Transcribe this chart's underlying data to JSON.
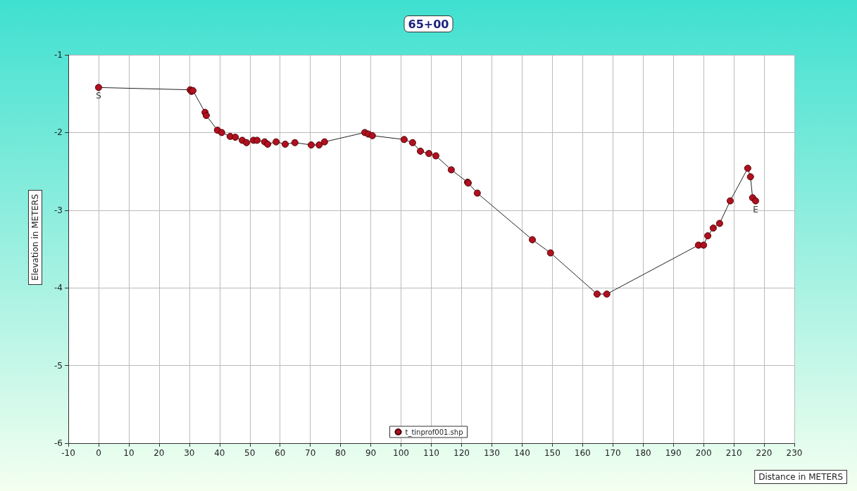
{
  "chart_data": {
    "type": "line",
    "title": "65+00",
    "xlabel": "Distance in METERS",
    "ylabel": "Elevation in METERS",
    "xlim": [
      -10,
      230
    ],
    "xticks": [
      -10,
      0,
      10,
      20,
      30,
      40,
      50,
      60,
      70,
      80,
      90,
      100,
      110,
      120,
      130,
      140,
      150,
      160,
      170,
      180,
      190,
      200,
      210,
      220,
      230
    ],
    "ylim": [
      -6,
      -1
    ],
    "yticks": [
      -6,
      -5,
      -4,
      -3,
      -2,
      -1
    ],
    "grid": true,
    "legend": "bottom",
    "marker": "circle",
    "line_style": "solid",
    "annotations": [
      {
        "text": "S",
        "x": 0,
        "y": -1.42
      },
      {
        "text": "E",
        "x": 217.2,
        "y": -2.88
      }
    ],
    "series": [
      {
        "name": "t_tinprof001.shp",
        "color": "#b01020",
        "x": [
          0,
          30.3,
          30.7,
          31.2,
          35.2,
          35.6,
          39.3,
          40.7,
          43.5,
          45.2,
          47.5,
          48.9,
          51.2,
          52.4,
          54.9,
          55.9,
          58.7,
          61.7,
          64.9,
          70.3,
          72.9,
          74.7,
          88,
          89.2,
          90.5,
          101,
          103.8,
          106.4,
          109.2,
          111.5,
          116.6,
          122,
          122.2,
          125.2,
          143.4,
          149.4,
          164.8,
          168,
          198.3,
          200,
          201.4,
          203.2,
          205.3,
          208.8,
          214.6,
          215.5,
          216.2,
          217.2
        ],
        "values": [
          -1.42,
          -1.45,
          -1.47,
          -1.46,
          -1.74,
          -1.78,
          -1.97,
          -2.0,
          -2.05,
          -2.06,
          -2.1,
          -2.13,
          -2.1,
          -2.1,
          -2.12,
          -2.15,
          -2.12,
          -2.15,
          -2.13,
          -2.16,
          -2.16,
          -2.12,
          -2.0,
          -2.02,
          -2.04,
          -2.09,
          -2.13,
          -2.24,
          -2.27,
          -2.3,
          -2.48,
          -2.64,
          -2.65,
          -2.78,
          -3.38,
          -3.55,
          -4.08,
          -4.08,
          -3.45,
          -3.45,
          -3.33,
          -3.23,
          -3.17,
          -2.88,
          -2.46,
          -2.57,
          -2.84,
          -2.88
        ]
      }
    ]
  }
}
